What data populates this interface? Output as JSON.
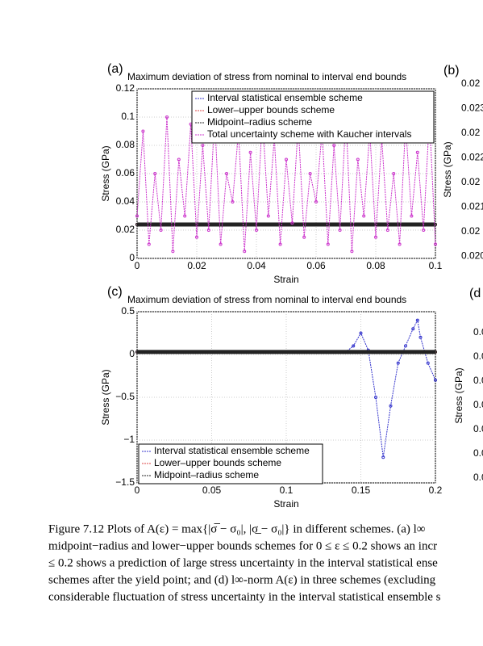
{
  "chart_data": [
    {
      "type": "line",
      "panel": "(a)",
      "title": "Maximum deviation of stress from nominal to interval end bounds",
      "xlabel": "Strain",
      "ylabel": "Stress (GPa)",
      "xlim": [
        0,
        0.1
      ],
      "xticks": [
        0,
        0.02,
        0.04,
        0.06,
        0.08,
        0.1
      ],
      "ylim": [
        0,
        0.12
      ],
      "yticks": [
        0,
        0.02,
        0.04,
        0.06,
        0.08,
        0.1,
        0.12
      ],
      "grid": true,
      "legend": "top-right",
      "series": [
        {
          "name": "Interval statistical ensemble scheme",
          "color": "#3333cc",
          "x": [
            0,
            0.1
          ],
          "values": [
            0.024,
            0.024
          ]
        },
        {
          "name": "Lower–upper bounds scheme",
          "color": "#dd4444",
          "x": [
            0,
            0.1
          ],
          "values": [
            0.024,
            0.024
          ]
        },
        {
          "name": "Midpoint–radius scheme",
          "color": "#222222",
          "x": [
            0,
            0.1
          ],
          "values": [
            0.024,
            0.024
          ]
        },
        {
          "name": "Total uncertainty scheme with Kaucher intervals",
          "color": "#cc33cc",
          "x": [
            0,
            0.002,
            0.004,
            0.006,
            0.008,
            0.01,
            0.012,
            0.014,
            0.016,
            0.018,
            0.02,
            0.022,
            0.024,
            0.026,
            0.028,
            0.03,
            0.032,
            0.034,
            0.036,
            0.038,
            0.04,
            0.042,
            0.044,
            0.046,
            0.048,
            0.05,
            0.052,
            0.054,
            0.056,
            0.058,
            0.06,
            0.062,
            0.064,
            0.066,
            0.068,
            0.07,
            0.072,
            0.074,
            0.076,
            0.078,
            0.08,
            0.082,
            0.084,
            0.086,
            0.088,
            0.09,
            0.092,
            0.094,
            0.096,
            0.098,
            0.1
          ],
          "values": [
            0.03,
            0.09,
            0.01,
            0.06,
            0.02,
            0.1,
            0.005,
            0.07,
            0.03,
            0.095,
            0.015,
            0.08,
            0.02,
            0.1,
            0.01,
            0.06,
            0.04,
            0.09,
            0.005,
            0.075,
            0.02,
            0.1,
            0.03,
            0.085,
            0.01,
            0.07,
            0.025,
            0.095,
            0.015,
            0.06,
            0.04,
            0.09,
            0.01,
            0.08,
            0.02,
            0.1,
            0.005,
            0.07,
            0.03,
            0.09,
            0.015,
            0.085,
            0.02,
            0.06,
            0.01,
            0.095,
            0.03,
            0.075,
            0.02,
            0.1,
            0.01
          ]
        }
      ]
    },
    {
      "type": "line",
      "panel": "(c)",
      "title": "Maximum deviation of stress from nominal to interval end bounds",
      "xlabel": "Strain",
      "ylabel": "Stress (GPa)",
      "xlim": [
        0,
        0.2
      ],
      "xticks": [
        0,
        0.05,
        0.1,
        0.15,
        0.2
      ],
      "ylim": [
        -1.5,
        0.5
      ],
      "yticks": [
        0.5,
        0,
        {
          "value": -0.5,
          "label": "−0.5"
        },
        {
          "value": -1,
          "label": "−1"
        },
        {
          "value": -1.5,
          "label": "−1.5"
        }
      ],
      "grid": true,
      "legend": "bottom-left",
      "series": [
        {
          "name": "Interval statistical ensemble scheme",
          "color": "#3333cc",
          "x": [
            0,
            0.02,
            0.04,
            0.06,
            0.08,
            0.1,
            0.12,
            0.14,
            0.145,
            0.15,
            0.155,
            0.16,
            0.165,
            0.17,
            0.175,
            0.18,
            0.185,
            0.188,
            0.19,
            0.195,
            0.2
          ],
          "values": [
            0.03,
            0.03,
            0.03,
            0.03,
            0.03,
            0.03,
            0.03,
            0.03,
            0.1,
            0.25,
            0.05,
            -0.5,
            -1.2,
            -0.6,
            -0.1,
            0.1,
            0.3,
            0.4,
            0.2,
            -0.1,
            -0.3
          ]
        },
        {
          "name": "Lower–upper bounds scheme",
          "color": "#dd4444",
          "x": [
            0,
            0.2
          ],
          "values": [
            0.03,
            0.03
          ]
        },
        {
          "name": "Midpoint–radius scheme",
          "color": "#222222",
          "x": [
            0,
            0.2
          ],
          "values": [
            0.03,
            0.03
          ]
        }
      ]
    }
  ],
  "cropped": {
    "b": {
      "panel": "(b)",
      "ylabel": "Stress (GPa)",
      "ticks": [
        "0.02",
        "0.023",
        "0.02",
        "0.022",
        "0.02",
        "0.021",
        "0.02",
        "0.020"
      ]
    },
    "d": {
      "panel": "(d",
      "ylabel": "Stress (GPa)",
      "ticks": [
        "0.0",
        "0.0",
        "0.0",
        "0.0",
        "0.0",
        "0.0",
        "0.0"
      ]
    }
  },
  "caption": [
    "Figure 7.12 Plots of A(ε) = max{|σ̅ − σ₀|, |σ̲ − σ₀|} in different schemes. (a) l∞",
    "midpoint−radius and lower−upper bounds schemes for 0 ≤ ε ≤ 0.2 shows an incr",
    "≤ 0.2 shows a prediction of large stress uncertainty in the interval statistical ense",
    "schemes after the yield point; and (d) l∞-norm A(ε) in three schemes (excluding",
    "considerable fluctuation of stress uncertainty in the interval statistical ensemble s"
  ]
}
